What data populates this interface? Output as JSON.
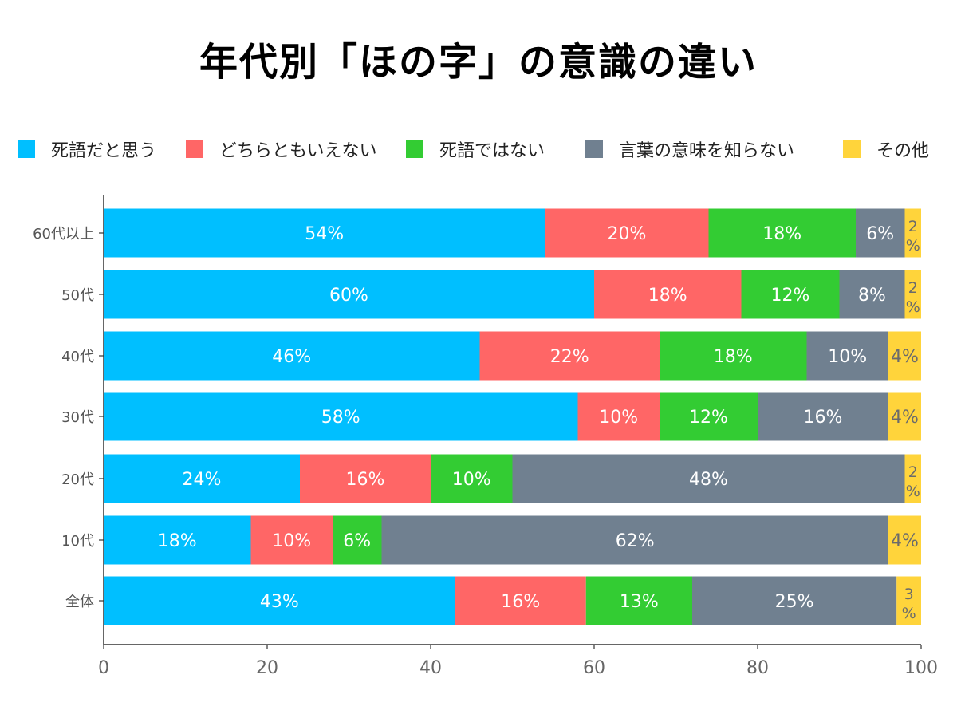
{
  "chart_data": {
    "type": "bar",
    "orientation": "horizontal",
    "stacked": true,
    "title": "年代別「ほの字」の意識の違い",
    "categories": [
      "60代以上",
      "50代",
      "40代",
      "30代",
      "20代",
      "10代",
      "全体"
    ],
    "series": [
      {
        "name": "死語だと思う",
        "color": "#00BFFF",
        "label_color": "#ffffff",
        "values": [
          54,
          60,
          46,
          58,
          24,
          18,
          43
        ]
      },
      {
        "name": "どちらともいえない",
        "color": "#FF6666",
        "label_color": "#ffffff",
        "values": [
          20,
          18,
          22,
          10,
          16,
          10,
          16
        ]
      },
      {
        "name": "死語ではない",
        "color": "#33CC33",
        "label_color": "#ffffff",
        "values": [
          18,
          12,
          18,
          12,
          10,
          6,
          13
        ]
      },
      {
        "name": "言葉の意味を知らない",
        "color": "#708090",
        "label_color": "#ffffff",
        "values": [
          6,
          8,
          10,
          16,
          48,
          62,
          25
        ]
      },
      {
        "name": "その他",
        "color": "#FFD43B",
        "label_color": "#6b6b6b",
        "values": [
          2,
          2,
          4,
          4,
          2,
          4,
          3
        ]
      }
    ],
    "value_suffix": "%",
    "xlim": [
      0,
      100
    ],
    "xticks": [
      0,
      20,
      40,
      60,
      80,
      100
    ],
    "legend_position": "top",
    "grid": false
  }
}
